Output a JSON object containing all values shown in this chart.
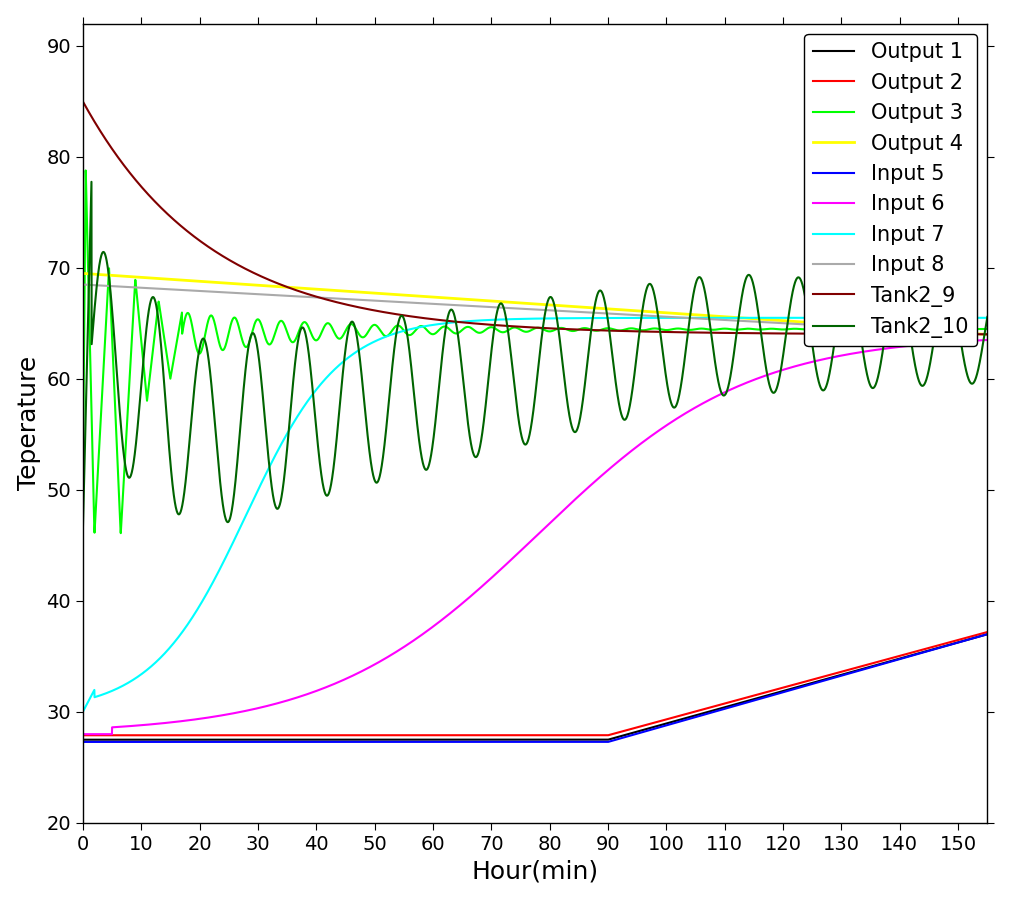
{
  "xlabel": "Hour(min)",
  "ylabel": "Teperature",
  "xlim": [
    0,
    155
  ],
  "ylim": [
    20,
    92
  ],
  "yticks": [
    20,
    30,
    40,
    50,
    60,
    70,
    80,
    90
  ],
  "xticks": [
    0,
    10,
    20,
    30,
    40,
    50,
    60,
    70,
    80,
    90,
    100,
    110,
    120,
    130,
    140,
    150
  ],
  "legend_labels": [
    "Output 1",
    "Output 2",
    "Output 3",
    "Output 4",
    "Input 5",
    "Input 6",
    "Input 7",
    "Input 8",
    "Tank2_9",
    "Tank2_10"
  ],
  "line_colors": [
    "#000000",
    "#ff0000",
    "#00ff00",
    "#ffff00",
    "#0000ff",
    "#ff00ff",
    "#00ffff",
    "#aaaaaa",
    "#800000",
    "#006400"
  ],
  "line_widths": [
    1.5,
    1.5,
    1.5,
    2.0,
    1.5,
    1.5,
    1.5,
    1.5,
    1.5,
    1.5
  ],
  "background_color": "#ffffff",
  "axis_fontsize": 18,
  "tick_fontsize": 14,
  "legend_fontsize": 15
}
